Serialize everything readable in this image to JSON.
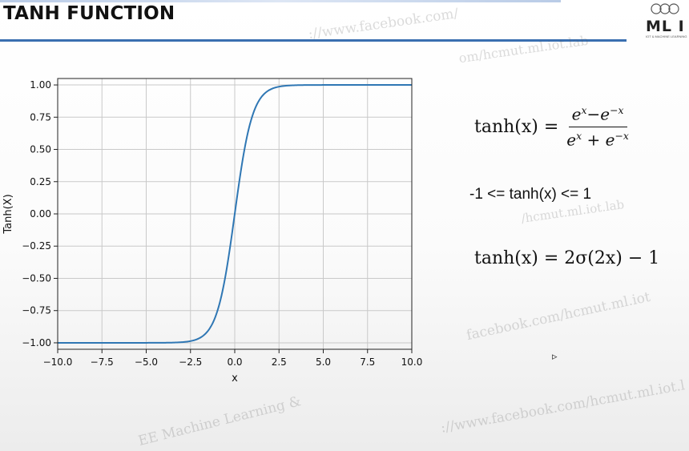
{
  "slide": {
    "title": "TANH FUNCTION"
  },
  "logo": {
    "text": "ML I",
    "subtitle": "IOT & MACHINE LEARNING"
  },
  "chart_data": {
    "type": "line",
    "title": "",
    "xlabel": "x",
    "ylabel": "Tanh(X)",
    "xlim": [
      -10.0,
      10.0
    ],
    "ylim": [
      -1.05,
      1.05
    ],
    "x_ticks": [
      "−10.0",
      "−7.5",
      "−5.0",
      "−2.5",
      "0.0",
      "2.5",
      "5.0",
      "7.5",
      "10.0"
    ],
    "y_ticks": [
      "−1.00",
      "−0.75",
      "−0.50",
      "−0.25",
      "0.00",
      "0.25",
      "0.50",
      "0.75",
      "1.00"
    ],
    "grid": true,
    "series": [
      {
        "color": "#2f77b4",
        "x": [
          -10,
          -5,
          -3,
          -2.5,
          -2,
          -1.5,
          -1,
          -0.5,
          0,
          0.5,
          1,
          1.5,
          2,
          2.5,
          3,
          5,
          10
        ],
        "y": [
          -1.0,
          -0.9999,
          -0.995,
          -0.987,
          -0.964,
          -0.905,
          -0.762,
          -0.462,
          0.0,
          0.462,
          0.762,
          0.905,
          0.964,
          0.987,
          0.995,
          0.9999,
          1.0
        ]
      }
    ]
  },
  "formulas": {
    "tanh_lhs": "tanh(x) =",
    "bound": "-1 <=  tanh(x) <= 1",
    "identity": "tanh(x) = 2σ(2x) − 1"
  },
  "watermarks": {
    "w1": "://www.facebook.com/",
    "w2": "om/hcmut.ml.iot.lab",
    "w3": "/hcmut.ml.iot.lab",
    "w4": "facebook.com/hcmut.ml.iot",
    "w5": "EE Machine Learning &",
    "w6": "://www.facebook.com/hcmut.ml.iot.l"
  }
}
